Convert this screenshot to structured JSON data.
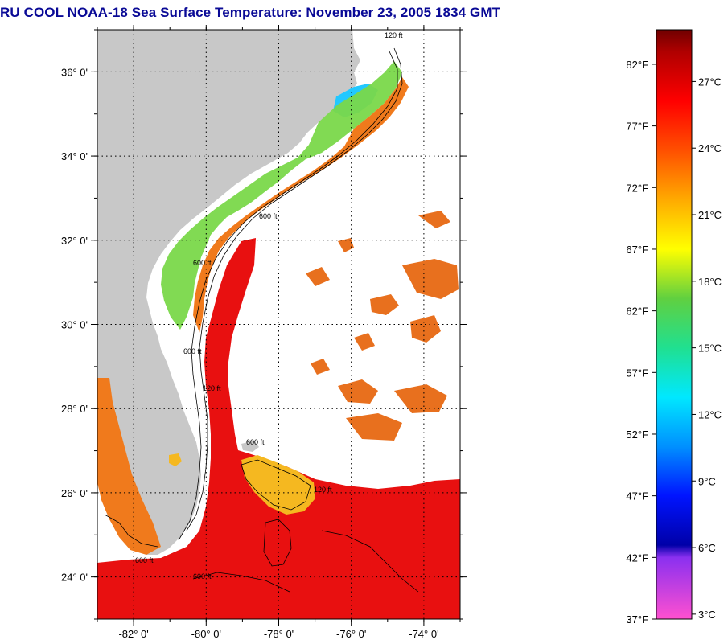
{
  "title": "RU COOL  NOAA-18  Sea Surface Temperature:  November 23, 2005 1834 GMT",
  "map": {
    "lon_range": [
      -83.0,
      -73.0
    ],
    "lat_range": [
      23.0,
      37.0
    ],
    "lon_ticks": [
      {
        "value": -82,
        "label": "-82° 0'"
      },
      {
        "value": -80,
        "label": "-80° 0'"
      },
      {
        "value": -78,
        "label": "-78° 0'"
      },
      {
        "value": -76,
        "label": "-76° 0'"
      },
      {
        "value": -74,
        "label": "-74° 0'"
      }
    ],
    "lat_ticks": [
      {
        "value": 36,
        "label": "36° 0'"
      },
      {
        "value": 34,
        "label": "34° 0'"
      },
      {
        "value": 32,
        "label": "32° 0'"
      },
      {
        "value": 30,
        "label": "30° 0'"
      },
      {
        "value": 28,
        "label": "28° 0'"
      },
      {
        "value": 26,
        "label": "26° 0'"
      },
      {
        "value": 24,
        "label": "24° 0'"
      }
    ],
    "contour_labels": [
      "120 ft",
      "600 ft",
      "600 ft",
      "600 ft",
      "120 ft",
      "600 ft",
      "600 ft",
      "600 ft",
      "120 ft"
    ],
    "colors": {
      "land": "#c8c8c8",
      "gulf_stream": "#e81010",
      "shelf_warm": "#f07a1c",
      "shelf_mid": "#f5b820",
      "shelf_cool": "#e8e820",
      "shelf_cold": "#7ad84a",
      "nearshore_cold": "#30d8f0",
      "sound_water": "#22c8ff",
      "patch_orange": "#e8701e",
      "grid": "#000000"
    }
  },
  "colorbar": {
    "fahrenheit_labels": [
      "82°F",
      "77°F",
      "72°F",
      "67°F",
      "62°F",
      "57°F",
      "52°F",
      "47°F",
      "42°F",
      "37°F"
    ],
    "celsius_labels": [
      "27°C",
      "24°C",
      "21°C",
      "18°C",
      "15°C",
      "12°C",
      "9°C",
      "6°C",
      "3°C"
    ],
    "fahrenheit_values": [
      82,
      77,
      72,
      67,
      62,
      57,
      52,
      47,
      42,
      37
    ],
    "celsius_values": [
      27,
      24,
      21,
      18,
      15,
      12,
      9,
      6,
      3
    ],
    "range_f": [
      37,
      84.8
    ],
    "stops": [
      {
        "f": 37,
        "color": "#ff50d0"
      },
      {
        "f": 42,
        "color": "#8a30f0"
      },
      {
        "f": 43,
        "color": "#0000a8"
      },
      {
        "f": 47,
        "color": "#0014ff"
      },
      {
        "f": 51,
        "color": "#0090ff"
      },
      {
        "f": 55,
        "color": "#00e8ff"
      },
      {
        "f": 59,
        "color": "#20e090"
      },
      {
        "f": 63,
        "color": "#60d040"
      },
      {
        "f": 67,
        "color": "#ffff00"
      },
      {
        "f": 71,
        "color": "#ffaa00"
      },
      {
        "f": 75,
        "color": "#ff5000"
      },
      {
        "f": 79,
        "color": "#ff0000"
      },
      {
        "f": 83,
        "color": "#b00000"
      },
      {
        "f": 84.8,
        "color": "#700000"
      }
    ]
  }
}
